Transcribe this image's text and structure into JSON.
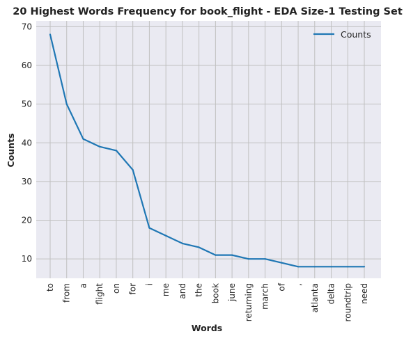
{
  "chart_data": {
    "type": "line",
    "title": "20 Highest Words Frequency for book_flight - EDA Size-1 Testing Set",
    "xlabel": "Words",
    "ylabel": "Counts",
    "categories": [
      "to",
      "from",
      "a",
      "flight",
      "on",
      "for",
      "i",
      "me",
      "and",
      "the",
      "book",
      "june",
      "returning",
      "march",
      "of",
      ",",
      "atlanta",
      "delta",
      "roundtrip",
      "need"
    ],
    "series": [
      {
        "name": "Counts",
        "values": [
          68,
          50,
          41,
          39,
          38,
          33,
          18,
          16,
          14,
          13,
          11,
          11,
          10,
          10,
          9,
          8,
          8,
          8,
          8,
          8
        ]
      }
    ],
    "ylim": [
      5,
      71.5
    ],
    "yticks": [
      10,
      20,
      30,
      40,
      50,
      60,
      70
    ],
    "grid": true,
    "legend_position": "top-right",
    "colors": {
      "line": "#1f77b4",
      "background": "#eaeaf2",
      "grid": "#c0c0c0"
    }
  }
}
